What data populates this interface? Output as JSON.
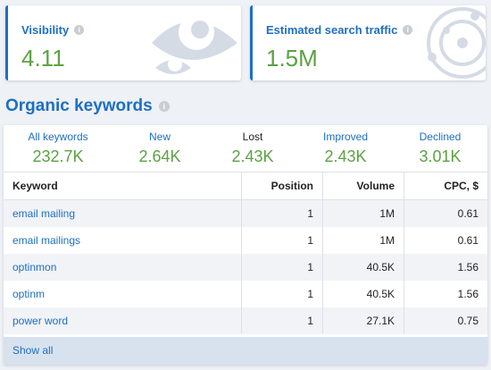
{
  "cards": {
    "visibility": {
      "title": "Visibility",
      "value": "4.11"
    },
    "traffic": {
      "title": "Estimated search traffic",
      "value": "1.5M"
    }
  },
  "section": {
    "title": "Organic keywords"
  },
  "stats": [
    {
      "label": "All keywords",
      "value": "232.7K"
    },
    {
      "label": "New",
      "value": "2.64K"
    },
    {
      "label": "Lost",
      "value": "2.43K"
    },
    {
      "label": "Improved",
      "value": "2.43K"
    },
    {
      "label": "Declined",
      "value": "3.01K"
    }
  ],
  "table": {
    "headers": [
      "Keyword",
      "Position",
      "Volume",
      "CPC, $"
    ],
    "rows": [
      [
        "email mailing",
        "1",
        "1M",
        "0.61"
      ],
      [
        "email mailings",
        "1",
        "1M",
        "0.61"
      ],
      [
        "optinmon",
        "1",
        "40.5K",
        "1.56"
      ],
      [
        "optinm",
        "1",
        "40.5K",
        "1.56"
      ],
      [
        "power word",
        "1",
        "27.1K",
        "0.75"
      ]
    ]
  },
  "footer": {
    "show_all": "Show all"
  },
  "icons": {
    "info": "info-icon",
    "eye": "eye-icon",
    "orbit": "orbit-icon"
  },
  "colors": {
    "accent": "#1d6fc2",
    "positive": "#5ba243"
  }
}
